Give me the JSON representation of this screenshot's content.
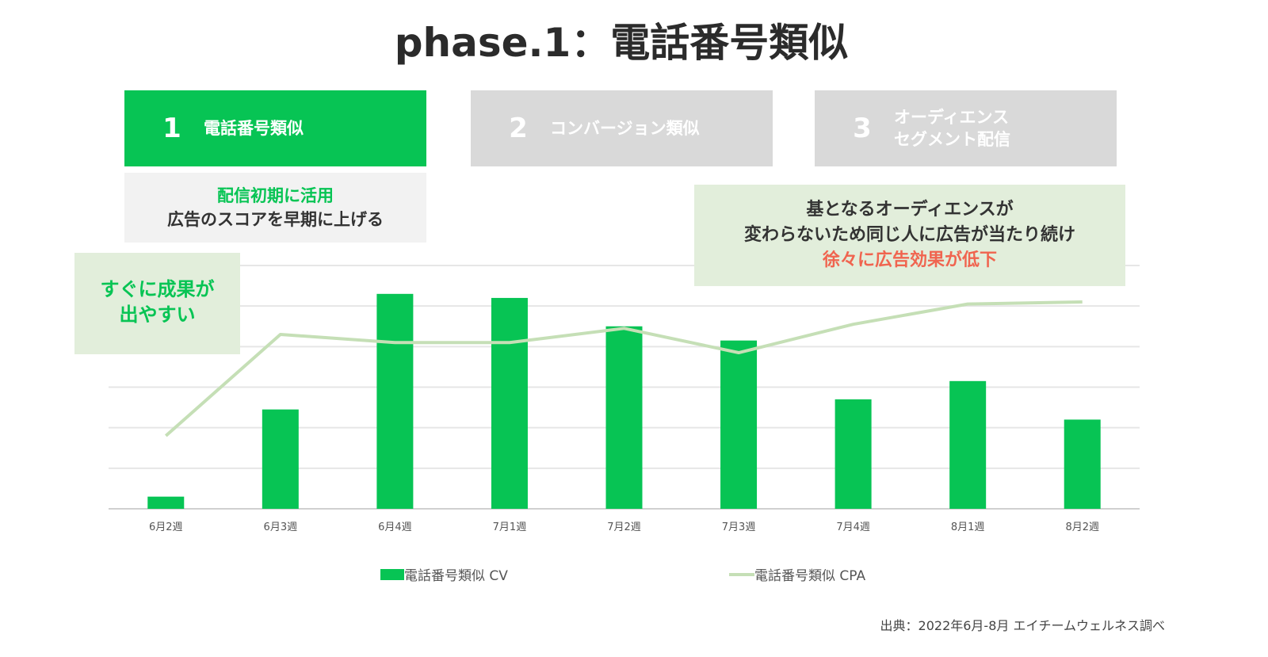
{
  "title": "phase.1：電話番号類似",
  "steps": [
    {
      "num": "1",
      "label": "電話番号類似"
    },
    {
      "num": "2",
      "label": "コンバージョン類似"
    },
    {
      "num": "3",
      "label_line1": "オーディエンス",
      "label_line2": "セグメント配信"
    }
  ],
  "notes": {
    "early_highlight": "配信初期に活用",
    "early_text": "広告のスコアを早期に上げる",
    "quick_line1": "すぐに成果が",
    "quick_line2": "出やすい",
    "decline_line1": "基となるオーディエンスが",
    "decline_line2": "変わらないため同じ人に広告が当たり続け",
    "decline_line3": "徐々に広告効果が低下"
  },
  "colors": {
    "bar": "#07c454",
    "line": "#c5dfb6",
    "active": "#07c454",
    "inactive": "#d9d9d9",
    "warn": "#f0644f"
  },
  "chart_data": {
    "type": "bar",
    "categories": [
      "6月2週",
      "6月3週",
      "6月4週",
      "7月1週",
      "7月2週",
      "7月3週",
      "7月4週",
      "8月1週",
      "8月2週"
    ],
    "series": [
      {
        "name": "電話番号類似 CV",
        "type": "bar",
        "values": [
          0.3,
          2.45,
          5.3,
          5.2,
          4.5,
          4.15,
          2.7,
          3.15,
          2.2
        ]
      },
      {
        "name": "電話番号類似 CPA",
        "type": "line",
        "values": [
          1.8,
          4.3,
          4.1,
          4.1,
          4.45,
          3.85,
          4.55,
          5.05,
          5.1
        ]
      }
    ],
    "ylim": [
      0,
      6
    ],
    "grid": true,
    "y_tick_labels_shown": false,
    "legend": "bottom"
  },
  "source": "出典：2022年6月-8月 エイチームウェルネス調べ"
}
